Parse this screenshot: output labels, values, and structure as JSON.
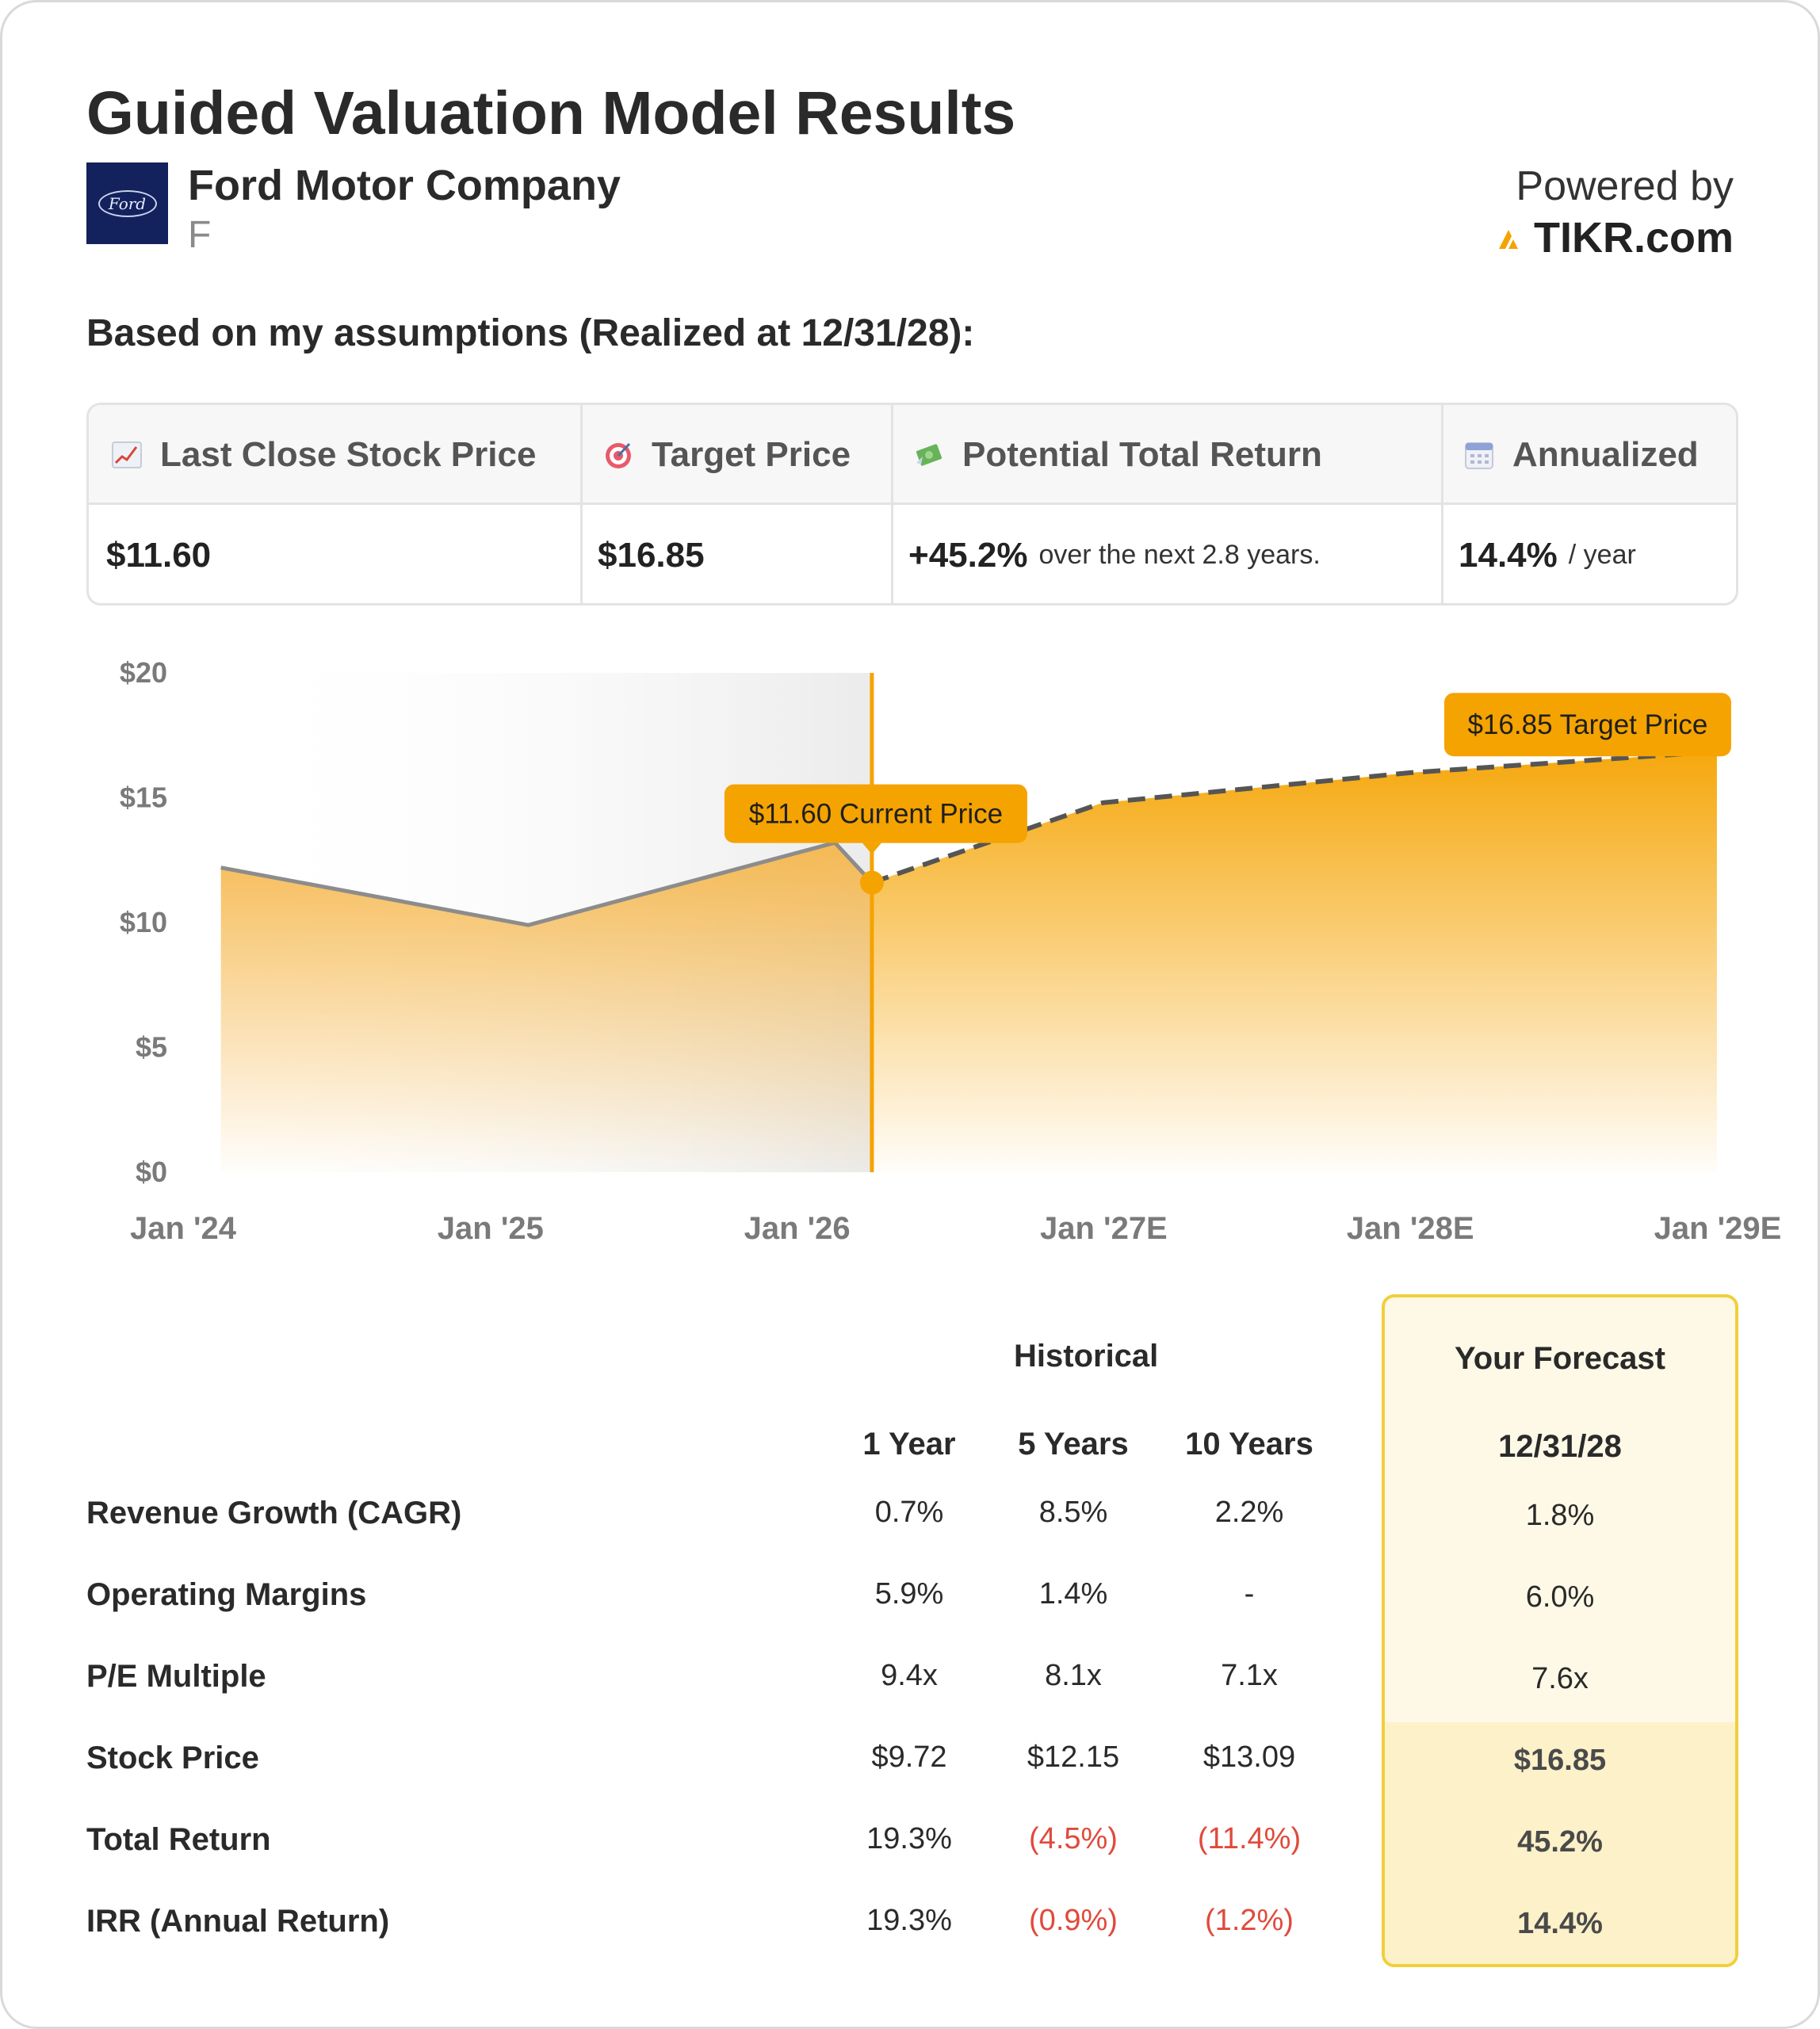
{
  "header": {
    "title": "Guided Valuation Model Results",
    "company_name": "Ford Motor Company",
    "ticker": "F",
    "logo_text": "Ford",
    "powered_by": "Powered by",
    "brand": "TIKR.com",
    "subtitle": "Based on my assumptions (Realized at 12/31/28):"
  },
  "summary": {
    "last_close_label": "Last Close Stock Price",
    "last_close_value": "$11.60",
    "target_label": "Target Price",
    "target_value": "$16.85",
    "return_label": "Potential Total Return",
    "return_value": "+45.2%",
    "return_note": "over the next 2.8 years.",
    "annualized_label": "Annualized",
    "annualized_value": "14.4%",
    "annualized_note": "/ year",
    "icons": [
      "chart-increasing-icon",
      "target-icon",
      "money-with-wings-icon",
      "calendar-icon"
    ]
  },
  "chart_data": {
    "type": "area",
    "title": "",
    "xlabel": "",
    "ylabel": "",
    "ylim": [
      0,
      20
    ],
    "yticks": [
      0,
      5,
      10,
      15,
      20
    ],
    "ytick_labels": [
      "$0",
      "$5",
      "$10",
      "$15",
      "$20"
    ],
    "xticks": [
      "2024-01-01",
      "2025-01-01",
      "2026-01-01",
      "2027-01-01",
      "2028-01-01",
      "2029-01-01"
    ],
    "xtick_labels": [
      "Jan '24",
      "Jan '25",
      "Jan '26",
      "Jan '27E",
      "Jan '28E",
      "Jan '29E"
    ],
    "series": [
      {
        "style": "solid",
        "x": [
          "2024-02-15",
          "2025-02-15",
          "2026-02-15",
          "2026-03-31"
        ],
        "y": [
          12.2,
          9.9,
          13.2,
          11.6
        ]
      },
      {
        "style": "dashed",
        "x": [
          "2026-03-31",
          "2026-12-31",
          "2027-12-31",
          "2028-12-31"
        ],
        "y": [
          11.6,
          14.8,
          16.0,
          16.85
        ]
      }
    ],
    "current_marker": {
      "x": "2026-03-31",
      "y": 11.6,
      "label": "$11.60 Current Price"
    },
    "target_marker": {
      "x": "2028-12-31",
      "y": 16.85,
      "label": "$16.85 Target Price"
    },
    "colors": {
      "accent": "#f5a300",
      "line": "#8c8c8c",
      "dashed": "#555555",
      "history_band": "#ececec"
    }
  },
  "table": {
    "group_header": "Historical",
    "columns": [
      "1 Year",
      "5 Years",
      "10 Years"
    ],
    "forecast_header": "Your Forecast",
    "forecast_date": "12/31/28",
    "rows": [
      {
        "label": "Revenue Growth (CAGR)",
        "values": [
          "0.7%",
          "8.5%",
          "2.2%"
        ],
        "negative": [
          false,
          false,
          false
        ],
        "forecast": "1.8%"
      },
      {
        "label": "Operating Margins",
        "values": [
          "5.9%",
          "1.4%",
          "-"
        ],
        "negative": [
          false,
          false,
          false
        ],
        "forecast": "6.0%"
      },
      {
        "label": "P/E Multiple",
        "values": [
          "9.4x",
          "8.1x",
          "7.1x"
        ],
        "negative": [
          false,
          false,
          false
        ],
        "forecast": "7.6x"
      },
      {
        "label": "Stock Price",
        "values": [
          "$9.72",
          "$12.15",
          "$13.09"
        ],
        "negative": [
          false,
          false,
          false
        ],
        "forecast": "$16.85"
      },
      {
        "label": "Total Return",
        "values": [
          "19.3%",
          "(4.5%)",
          "(11.4%)"
        ],
        "negative": [
          false,
          true,
          true
        ],
        "forecast": "45.2%"
      },
      {
        "label": "IRR (Annual Return)",
        "values": [
          "19.3%",
          "(0.9%)",
          "(1.2%)"
        ],
        "negative": [
          false,
          true,
          true
        ],
        "forecast": "14.4%"
      }
    ]
  }
}
